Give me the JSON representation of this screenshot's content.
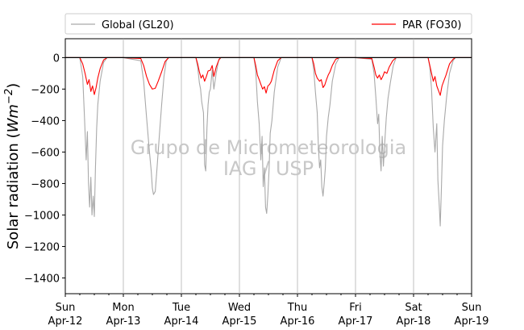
{
  "chart_data": {
    "type": "line",
    "ylabel": "Solar radiation (Wm−2)",
    "ylabel_prefix": "Solar radiation (",
    "ylabel_math": "Wm",
    "ylabel_exp": "−2",
    "ylabel_suffix": ")",
    "ylim": [
      -1500,
      120
    ],
    "yticks": [
      0,
      -200,
      -400,
      -600,
      -800,
      -1000,
      -1200,
      -1400
    ],
    "xlim": [
      0,
      7
    ],
    "xticks": [
      {
        "day": "Sun",
        "date": "Apr-12"
      },
      {
        "day": "Mon",
        "date": "Apr-13"
      },
      {
        "day": "Tue",
        "date": "Apr-14"
      },
      {
        "day": "Wed",
        "date": "Apr-15"
      },
      {
        "day": "Thu",
        "date": "Apr-16"
      },
      {
        "day": "Fri",
        "date": "Apr-17"
      },
      {
        "day": "Sat",
        "date": "Apr-18"
      },
      {
        "day": "Sun",
        "date": "Apr-19"
      }
    ],
    "grid": "vertical",
    "legend_position": "top",
    "watermark": [
      "Grupo de Micrometeorologia",
      "IAG / USP"
    ],
    "series": [
      {
        "name": "Global (GL20)",
        "color": "#a9a9a9",
        "points": [
          [
            0.0,
            0
          ],
          [
            0.25,
            0
          ],
          [
            0.3,
            -120
          ],
          [
            0.33,
            -380
          ],
          [
            0.36,
            -650
          ],
          [
            0.38,
            -470
          ],
          [
            0.4,
            -800
          ],
          [
            0.42,
            -950
          ],
          [
            0.44,
            -760
          ],
          [
            0.46,
            -1000
          ],
          [
            0.48,
            -880
          ],
          [
            0.5,
            -1010
          ],
          [
            0.52,
            -700
          ],
          [
            0.54,
            -450
          ],
          [
            0.56,
            -300
          ],
          [
            0.6,
            -150
          ],
          [
            0.66,
            -30
          ],
          [
            0.72,
            0
          ],
          [
            1.0,
            0
          ],
          [
            1.3,
            -20
          ],
          [
            1.35,
            -150
          ],
          [
            1.4,
            -380
          ],
          [
            1.45,
            -600
          ],
          [
            1.48,
            -720
          ],
          [
            1.5,
            -830
          ],
          [
            1.52,
            -870
          ],
          [
            1.55,
            -850
          ],
          [
            1.58,
            -700
          ],
          [
            1.62,
            -500
          ],
          [
            1.66,
            -300
          ],
          [
            1.7,
            -120
          ],
          [
            1.74,
            -20
          ],
          [
            1.78,
            0
          ],
          [
            2.0,
            0
          ],
          [
            2.25,
            0
          ],
          [
            2.28,
            -60
          ],
          [
            2.31,
            -160
          ],
          [
            2.33,
            -200
          ],
          [
            2.35,
            -280
          ],
          [
            2.38,
            -350
          ],
          [
            2.4,
            -680
          ],
          [
            2.42,
            -720
          ],
          [
            2.44,
            -450
          ],
          [
            2.46,
            -300
          ],
          [
            2.48,
            -220
          ],
          [
            2.5,
            -200
          ],
          [
            2.53,
            -80
          ],
          [
            2.56,
            -200
          ],
          [
            2.6,
            -100
          ],
          [
            2.64,
            -20
          ],
          [
            2.68,
            0
          ],
          [
            3.0,
            0
          ],
          [
            3.25,
            0
          ],
          [
            3.28,
            -80
          ],
          [
            3.31,
            -280
          ],
          [
            3.34,
            -420
          ],
          [
            3.37,
            -650
          ],
          [
            3.39,
            -500
          ],
          [
            3.41,
            -820
          ],
          [
            3.43,
            -700
          ],
          [
            3.45,
            -950
          ],
          [
            3.47,
            -990
          ],
          [
            3.49,
            -870
          ],
          [
            3.51,
            -720
          ],
          [
            3.53,
            -480
          ],
          [
            3.56,
            -400
          ],
          [
            3.6,
            -220
          ],
          [
            3.66,
            -60
          ],
          [
            3.72,
            0
          ],
          [
            4.0,
            0
          ],
          [
            4.25,
            0
          ],
          [
            4.28,
            -80
          ],
          [
            4.31,
            -220
          ],
          [
            4.34,
            -350
          ],
          [
            4.36,
            -560
          ],
          [
            4.38,
            -700
          ],
          [
            4.4,
            -650
          ],
          [
            4.42,
            -820
          ],
          [
            4.44,
            -880
          ],
          [
            4.46,
            -800
          ],
          [
            4.48,
            -700
          ],
          [
            4.5,
            -500
          ],
          [
            4.53,
            -380
          ],
          [
            4.56,
            -300
          ],
          [
            4.6,
            -150
          ],
          [
            4.66,
            -40
          ],
          [
            4.72,
            0
          ],
          [
            5.0,
            0
          ],
          [
            5.28,
            -10
          ],
          [
            5.32,
            -100
          ],
          [
            5.35,
            -250
          ],
          [
            5.38,
            -420
          ],
          [
            5.4,
            -360
          ],
          [
            5.42,
            -600
          ],
          [
            5.44,
            -720
          ],
          [
            5.46,
            -500
          ],
          [
            5.48,
            -690
          ],
          [
            5.5,
            -560
          ],
          [
            5.53,
            -380
          ],
          [
            5.56,
            -260
          ],
          [
            5.6,
            -160
          ],
          [
            5.65,
            -50
          ],
          [
            5.7,
            0
          ],
          [
            6.0,
            0
          ],
          [
            6.25,
            0
          ],
          [
            6.28,
            -60
          ],
          [
            6.31,
            -200
          ],
          [
            6.34,
            -450
          ],
          [
            6.37,
            -600
          ],
          [
            6.4,
            -420
          ],
          [
            6.42,
            -780
          ],
          [
            6.44,
            -920
          ],
          [
            6.46,
            -1070
          ],
          [
            6.48,
            -820
          ],
          [
            6.5,
            -560
          ],
          [
            6.53,
            -400
          ],
          [
            6.57,
            -250
          ],
          [
            6.62,
            -100
          ],
          [
            6.68,
            -20
          ],
          [
            6.72,
            0
          ],
          [
            7.0,
            0
          ]
        ]
      },
      {
        "name": "PAR (FO30)",
        "color": "#ff0000",
        "points": [
          [
            0.0,
            0
          ],
          [
            0.25,
            0
          ],
          [
            0.3,
            -40
          ],
          [
            0.34,
            -100
          ],
          [
            0.38,
            -170
          ],
          [
            0.41,
            -140
          ],
          [
            0.44,
            -215
          ],
          [
            0.47,
            -180
          ],
          [
            0.5,
            -235
          ],
          [
            0.53,
            -190
          ],
          [
            0.56,
            -130
          ],
          [
            0.6,
            -70
          ],
          [
            0.66,
            -15
          ],
          [
            0.72,
            0
          ],
          [
            1.0,
            0
          ],
          [
            1.3,
            -5
          ],
          [
            1.35,
            -50
          ],
          [
            1.4,
            -120
          ],
          [
            1.45,
            -170
          ],
          [
            1.5,
            -200
          ],
          [
            1.55,
            -195
          ],
          [
            1.6,
            -150
          ],
          [
            1.66,
            -90
          ],
          [
            1.72,
            -25
          ],
          [
            1.78,
            0
          ],
          [
            2.0,
            0
          ],
          [
            2.25,
            0
          ],
          [
            2.28,
            -40
          ],
          [
            2.31,
            -90
          ],
          [
            2.34,
            -130
          ],
          [
            2.37,
            -110
          ],
          [
            2.4,
            -150
          ],
          [
            2.43,
            -120
          ],
          [
            2.46,
            -85
          ],
          [
            2.5,
            -80
          ],
          [
            2.53,
            -50
          ],
          [
            2.56,
            -120
          ],
          [
            2.6,
            -60
          ],
          [
            2.65,
            -10
          ],
          [
            2.68,
            0
          ],
          [
            3.0,
            0
          ],
          [
            3.25,
            0
          ],
          [
            3.28,
            -50
          ],
          [
            3.31,
            -110
          ],
          [
            3.34,
            -140
          ],
          [
            3.37,
            -170
          ],
          [
            3.4,
            -200
          ],
          [
            3.43,
            -185
          ],
          [
            3.46,
            -225
          ],
          [
            3.49,
            -180
          ],
          [
            3.52,
            -170
          ],
          [
            3.55,
            -150
          ],
          [
            3.6,
            -80
          ],
          [
            3.66,
            -20
          ],
          [
            3.72,
            0
          ],
          [
            4.0,
            0
          ],
          [
            4.25,
            0
          ],
          [
            4.28,
            -40
          ],
          [
            4.31,
            -100
          ],
          [
            4.34,
            -130
          ],
          [
            4.38,
            -150
          ],
          [
            4.41,
            -140
          ],
          [
            4.44,
            -190
          ],
          [
            4.47,
            -175
          ],
          [
            4.5,
            -140
          ],
          [
            4.53,
            -110
          ],
          [
            4.56,
            -90
          ],
          [
            4.6,
            -50
          ],
          [
            4.66,
            -10
          ],
          [
            4.72,
            0
          ],
          [
            5.0,
            0
          ],
          [
            5.28,
            -5
          ],
          [
            5.32,
            -60
          ],
          [
            5.35,
            -110
          ],
          [
            5.38,
            -130
          ],
          [
            5.41,
            -110
          ],
          [
            5.44,
            -140
          ],
          [
            5.47,
            -120
          ],
          [
            5.5,
            -90
          ],
          [
            5.54,
            -100
          ],
          [
            5.58,
            -60
          ],
          [
            5.64,
            -20
          ],
          [
            5.7,
            0
          ],
          [
            6.0,
            0
          ],
          [
            6.25,
            0
          ],
          [
            6.28,
            -50
          ],
          [
            6.31,
            -100
          ],
          [
            6.34,
            -150
          ],
          [
            6.37,
            -120
          ],
          [
            6.4,
            -180
          ],
          [
            6.43,
            -210
          ],
          [
            6.46,
            -240
          ],
          [
            6.49,
            -180
          ],
          [
            6.52,
            -150
          ],
          [
            6.56,
            -110
          ],
          [
            6.62,
            -40
          ],
          [
            6.68,
            -10
          ],
          [
            6.72,
            0
          ],
          [
            7.0,
            0
          ]
        ]
      }
    ]
  }
}
